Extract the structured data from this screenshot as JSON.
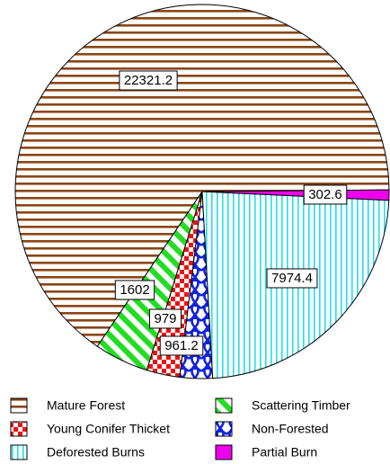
{
  "chart_data": {
    "type": "pie",
    "categories": [
      "Mature Forest",
      "Scattering Timber",
      "Young Conifer Thicket",
      "Non-Forested",
      "Deforested Burns",
      "Partial Burn"
    ],
    "values": [
      22321.2,
      1602,
      979,
      961.2,
      7974.4,
      302.6
    ],
    "colors": [
      "#8b4513",
      "#22dd22",
      "#ee1111",
      "#1122dd",
      "#22ddee",
      "#ee00ee"
    ]
  }
}
